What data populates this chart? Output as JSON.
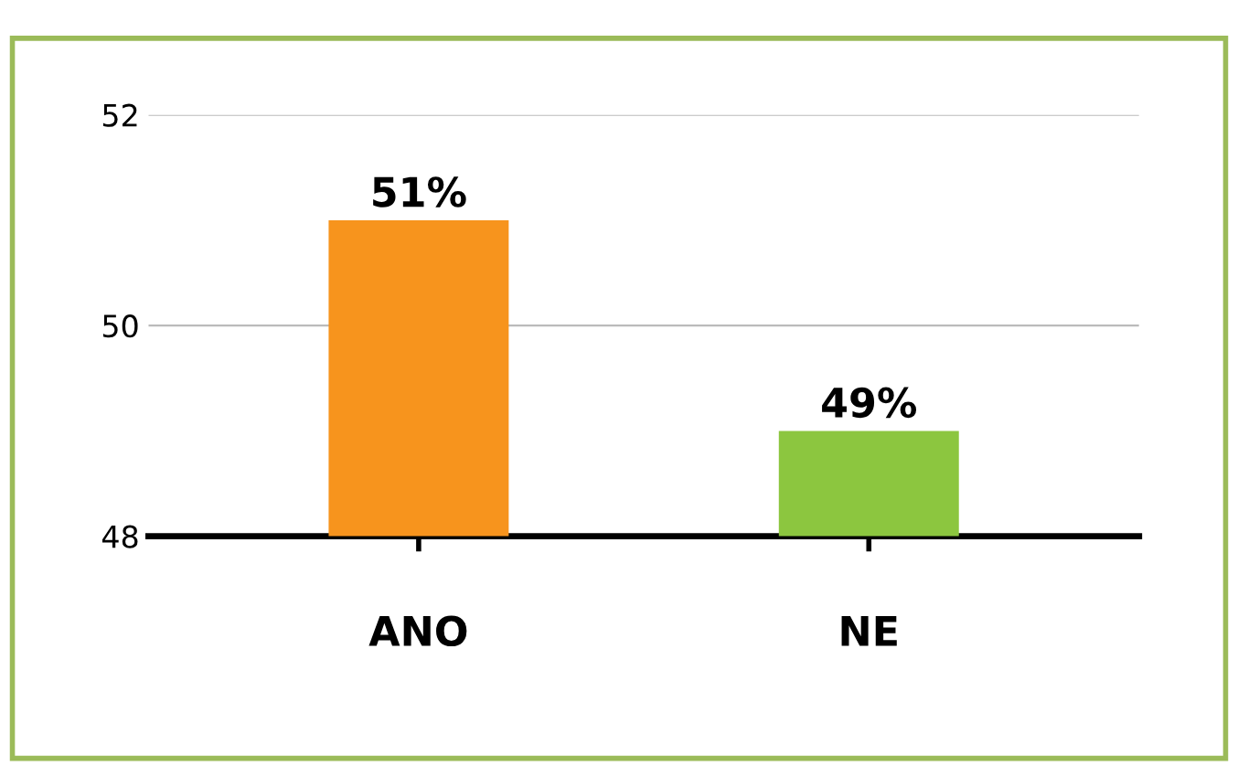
{
  "chart_data": {
    "type": "bar",
    "categories": [
      "ANO",
      "NE"
    ],
    "values": [
      51,
      49
    ],
    "colors": [
      "#f7941d",
      "#8cc63f"
    ],
    "value_labels": [
      "51%",
      "49%"
    ],
    "ylim": [
      48,
      52
    ],
    "yticks": [
      48,
      50,
      52
    ],
    "grid": "y"
  }
}
